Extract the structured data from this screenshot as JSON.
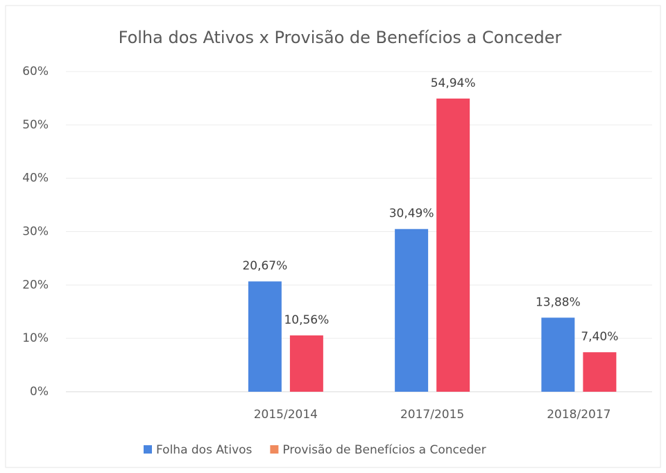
{
  "chart_data": {
    "type": "bar",
    "title": "Folha dos Ativos x Provisão de Benefícios a Conceder",
    "categories": [
      null,
      "2015/2014",
      "2017/2015",
      "2018/2017"
    ],
    "series": [
      {
        "name": "Folha dos Ativos",
        "color": "#4a86e0",
        "legend_color": "#4a86e0",
        "values": [
          null,
          20.67,
          30.49,
          13.88
        ],
        "value_labels": [
          null,
          "20,67%",
          "30,49%",
          "13,88%"
        ]
      },
      {
        "name": "Provisão de Benefícios a Conceder",
        "color": "#f2475f",
        "legend_color": "#f08a5d",
        "values": [
          null,
          10.56,
          54.94,
          7.4
        ],
        "value_labels": [
          null,
          "10,56%",
          "54,94%",
          "7,40%"
        ]
      }
    ],
    "ylim": [
      0,
      60
    ],
    "yticks": [
      {
        "value": 0,
        "label": "0%"
      },
      {
        "value": 10,
        "label": "10%"
      },
      {
        "value": 20,
        "label": "20%"
      },
      {
        "value": 30,
        "label": "30%"
      },
      {
        "value": 40,
        "label": "40%"
      },
      {
        "value": 50,
        "label": "50%"
      },
      {
        "value": 60,
        "label": "60%"
      }
    ],
    "grid": true,
    "legend": "bottom"
  }
}
